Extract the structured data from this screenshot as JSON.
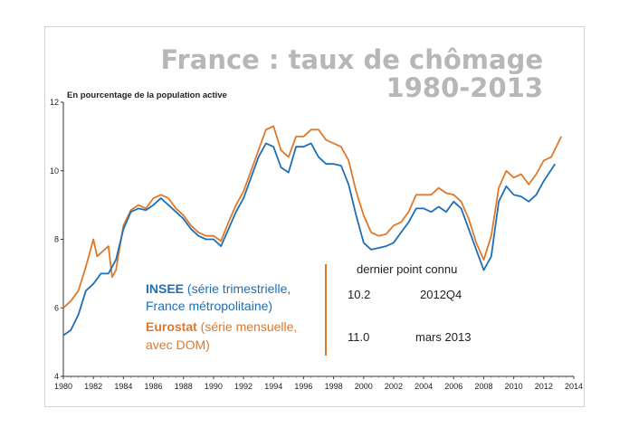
{
  "chart_data": {
    "type": "line",
    "title": "France : taux de chômage",
    "subtitle": "1980-2013",
    "ylabel": "En pourcentage de la population active",
    "xlabel": "",
    "xlim": [
      1980,
      2014
    ],
    "ylim": [
      4,
      12
    ],
    "x_ticks": [
      "1980",
      "1982",
      "1984",
      "1986",
      "1988",
      "1990",
      "1992",
      "1994",
      "1996",
      "1998",
      "2000",
      "2002",
      "2004",
      "2006",
      "2008",
      "2010",
      "2012",
      "2014"
    ],
    "y_ticks": [
      "4",
      "6",
      "8",
      "10",
      "12"
    ],
    "series": [
      {
        "name": "INSEE",
        "color": "#1f6fb6",
        "x": [
          1980,
          1980.5,
          1981,
          1981.5,
          1982,
          1982.5,
          1983,
          1983.5,
          1984,
          1984.5,
          1985,
          1985.5,
          1986,
          1986.5,
          1987,
          1987.5,
          1988,
          1988.5,
          1989,
          1989.5,
          1990,
          1990.5,
          1991,
          1991.5,
          1992,
          1992.5,
          1993,
          1993.5,
          1994,
          1994.5,
          1995,
          1995.5,
          1996,
          1996.5,
          1997,
          1997.5,
          1998,
          1998.5,
          1999,
          1999.5,
          2000,
          2000.5,
          2001,
          2001.5,
          2002,
          2002.5,
          2003,
          2003.5,
          2004,
          2004.5,
          2005,
          2005.5,
          2006,
          2006.5,
          2007,
          2007.5,
          2008,
          2008.5,
          2009,
          2009.5,
          2010,
          2010.5,
          2011,
          2011.5,
          2012,
          2012.75
        ],
        "values": [
          5.2,
          5.35,
          5.8,
          6.5,
          6.7,
          7.0,
          7.0,
          7.4,
          8.3,
          8.8,
          8.9,
          8.85,
          9.0,
          9.2,
          9.0,
          8.8,
          8.6,
          8.3,
          8.1,
          8.0,
          8.0,
          7.8,
          8.3,
          8.8,
          9.2,
          9.8,
          10.4,
          10.8,
          10.7,
          10.1,
          9.95,
          10.7,
          10.7,
          10.8,
          10.4,
          10.2,
          10.2,
          10.15,
          9.6,
          8.7,
          7.9,
          7.7,
          7.75,
          7.8,
          7.9,
          8.2,
          8.5,
          8.9,
          8.9,
          8.8,
          8.95,
          8.8,
          9.1,
          8.9,
          8.3,
          7.7,
          7.1,
          7.5,
          9.1,
          9.55,
          9.3,
          9.25,
          9.1,
          9.3,
          9.7,
          10.2
        ]
      },
      {
        "name": "Eurostat",
        "color": "#e0782a",
        "x": [
          1980,
          1980.5,
          1981,
          1981.5,
          1982,
          1982.25,
          1982.5,
          1983,
          1983.25,
          1983.5,
          1984,
          1984.5,
          1985,
          1985.5,
          1986,
          1986.5,
          1987,
          1987.5,
          1988,
          1988.5,
          1989,
          1989.5,
          1990,
          1990.5,
          1991,
          1991.5,
          1992,
          1992.5,
          1993,
          1993.5,
          1994,
          1994.5,
          1995,
          1995.5,
          1996,
          1996.5,
          1997,
          1997.5,
          1998,
          1998.5,
          1999,
          1999.5,
          2000,
          2000.5,
          2001,
          2001.5,
          2002,
          2002.5,
          2003,
          2003.5,
          2004,
          2004.5,
          2005,
          2005.5,
          2006,
          2006.5,
          2007,
          2007.5,
          2008,
          2008.5,
          2009,
          2009.5,
          2010,
          2010.5,
          2011,
          2011.5,
          2012,
          2012.5,
          2013.17
        ],
        "values": [
          6.0,
          6.2,
          6.5,
          7.2,
          8.0,
          7.5,
          7.6,
          7.8,
          6.9,
          7.1,
          8.4,
          8.85,
          9.0,
          8.9,
          9.2,
          9.3,
          9.2,
          8.9,
          8.7,
          8.4,
          8.2,
          8.1,
          8.1,
          7.95,
          8.5,
          9.0,
          9.4,
          10.0,
          10.6,
          11.2,
          11.3,
          10.6,
          10.4,
          11.0,
          11.0,
          11.2,
          11.2,
          10.9,
          10.8,
          10.7,
          10.3,
          9.4,
          8.7,
          8.2,
          8.1,
          8.15,
          8.4,
          8.5,
          8.8,
          9.3,
          9.3,
          9.3,
          9.5,
          9.35,
          9.3,
          9.1,
          8.6,
          7.9,
          7.4,
          8.1,
          9.5,
          10.0,
          9.8,
          9.9,
          9.6,
          9.9,
          10.3,
          10.4,
          11.0
        ]
      }
    ],
    "legend": [
      {
        "bold": "INSEE",
        "line1": " (série trimestrielle,",
        "line2": "France métropolitaine)",
        "color": "#1f6fb6"
      },
      {
        "bold": "Eurostat",
        "line1": " (série mensuelle,",
        "line2": "avec DOM)",
        "color": "#e0782a"
      }
    ],
    "annotation": {
      "header": "dernier point connu",
      "rows": [
        {
          "value": "10.2",
          "period": "2012Q4"
        },
        {
          "value": "11.0",
          "period": "mars 2013"
        }
      ],
      "separator_color": "#e0782a"
    }
  }
}
